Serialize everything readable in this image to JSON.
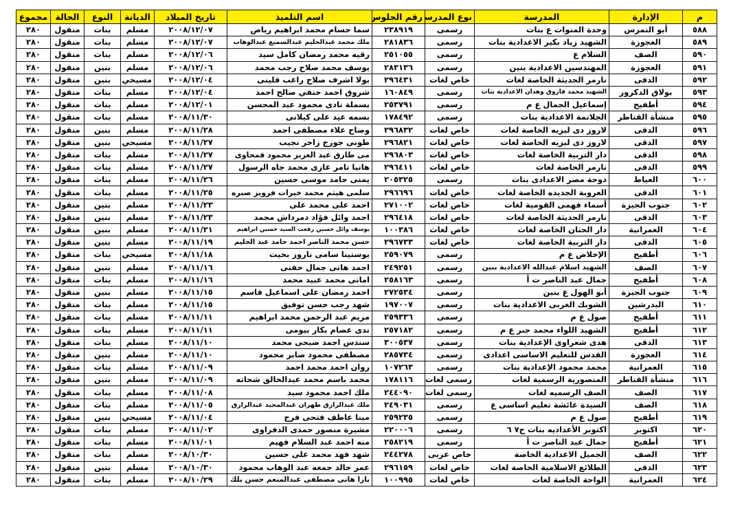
{
  "colors": {
    "header_bg": "#ffee00",
    "border": "#111111"
  },
  "headers": {
    "no": "م",
    "admin": "الإدارة",
    "school": "المدرسة",
    "school_type": "نوع المدرسة",
    "seat": "رقم الجلوس",
    "name": "اسم التلميذ",
    "dob": "تاريخ الميلاد",
    "religion": "الديانة",
    "gender": "النوع",
    "status": "الحالة",
    "total": "مجموع"
  },
  "rows": [
    {
      "no": "٥٨٨",
      "admin": "أبو النمرس",
      "school": "وحدة المنوات ع بنات",
      "school_type": "رسمى",
      "seat": "٢٣٨٩١٩",
      "name": "سما حسام محمد ابراهيم رياض",
      "dob": "٢٠٠٨/١٢/٠٧",
      "religion": "مسلم",
      "gender": "بنات",
      "status": "منقول",
      "total": "٢٨٠"
    },
    {
      "no": "٥٨٩",
      "admin": "العجوزة",
      "school": "الشهيد زياد بكير الاعدادية بنات",
      "school_type": "رسمى",
      "seat": "٢٨١٨٣٦",
      "name": "ملك محمد عبدالحليم عبدالسميع عبدالوهاب",
      "dob": "٢٠٠٨/١٢/٠٧",
      "religion": "مسلم",
      "gender": "بنات",
      "status": "منقول",
      "total": "٢٨٠"
    },
    {
      "no": "٥٩٠",
      "admin": "الصف",
      "school": "السلام ع",
      "school_type": "رسمى",
      "seat": "٢٥١٠٥٥",
      "name": "رقيه محمد رمضان كامل سيد",
      "dob": "٢٠٠٨/١٢/٠٦",
      "religion": "مسلم",
      "gender": "بنات",
      "status": "منقول",
      "total": "٢٨٠"
    },
    {
      "no": "٥٩١",
      "admin": "العجوزة",
      "school": "المهندسين الاعدادية بنين",
      "school_type": "رسمى",
      "seat": "٢٨٣١٣٦",
      "name": "يوسف محمد صلاح رجب محمد",
      "dob": "٢٠٠٨/١٢/٠٦",
      "religion": "مسلم",
      "gender": "بنين",
      "status": "منقول",
      "total": "٢٨٠"
    },
    {
      "no": "٥٩٢",
      "admin": "الدقى",
      "school": "نارمر الحديثة الخاصة لغات",
      "school_type": "خاص لغات",
      "seat": "٢٩٦٤٣١",
      "name": "بولا اشرف صلاح راغب قلينى",
      "dob": "٢٠٠٨/١٢/٠٤",
      "religion": "مسيحي",
      "gender": "بنين",
      "status": "منقول",
      "total": "٢٨٠"
    },
    {
      "no": "٥٩٣",
      "admin": "بولاق الدكرور",
      "school": "الشهيد محمد فاروق وهدان الاعدادية بنات",
      "school_type": "رسمى",
      "seat": "١٦٠٨٤٩",
      "name": "شروق احمد حنفي صالح احمد",
      "dob": "٢٠٠٨/١٢/٠٤",
      "religion": "مسلم",
      "gender": "بنات",
      "status": "منقول",
      "total": "٢٨٠"
    },
    {
      "no": "٥٩٤",
      "admin": "أطفيح",
      "school": "إسماعيل الجمال ع م",
      "school_type": "رسمى",
      "seat": "٢٥٣٧٩١",
      "name": "بسملة نادى محمود عبد المحسن",
      "dob": "٢٠٠٨/١٢/٠١",
      "religion": "مسلم",
      "gender": "بنات",
      "status": "منقول",
      "total": "٢٨٠"
    },
    {
      "no": "٥٩٥",
      "admin": "منشأة القناطر",
      "school": "الجلاتمة الاعدادية بنات",
      "school_type": "رسمى",
      "seat": "١٧٨٤٩٢",
      "name": "بسمه عيد على كيلانى",
      "dob": "٢٠٠٨/١١/٣٠",
      "religion": "مسلم",
      "gender": "بنات",
      "status": "منقول",
      "total": "٢٨٠"
    },
    {
      "no": "٥٩٦",
      "admin": "الدقى",
      "school": "لاروز دى ليزيه الخاصة لغات",
      "school_type": "خاص لغات",
      "seat": "٢٩٦٨٣٢",
      "name": "وضاح علاء مصطفى احمد",
      "dob": "٢٠٠٨/١١/٢٨",
      "religion": "مسلم",
      "gender": "بنين",
      "status": "منقول",
      "total": "٢٨٠"
    },
    {
      "no": "٥٩٧",
      "admin": "الدقى",
      "school": "لاروز دى ليزيه الخاصة لغات",
      "school_type": "خاص لغات",
      "seat": "٢٩٦٨٢١",
      "name": "طونى جورج زاخر نجيب",
      "dob": "٢٠٠٨/١١/٢٧",
      "religion": "مسيحي",
      "gender": "بنين",
      "status": "منقول",
      "total": "٢٨٠"
    },
    {
      "no": "٥٩٨",
      "admin": "الدقى",
      "school": "دار التربية الخاصة لغات",
      "school_type": "خاص لغات",
      "seat": "٢٩٦٨٠٣",
      "name": "مى طارق عبد العزيز محمود قمحاوى",
      "dob": "٢٠٠٨/١١/٢٧",
      "religion": "مسلم",
      "gender": "بنات",
      "status": "منقول",
      "total": "٢٨٠"
    },
    {
      "no": "٥٩٩",
      "admin": "الدقى",
      "school": "نارمر الخاصة لغات",
      "school_type": "خاص لغات",
      "seat": "٢٩٦٤١١",
      "name": "هانيا تامر غازى محمد جاه الرسول",
      "dob": "٢٠٠٨/١١/٢٧",
      "religion": "مسلم",
      "gender": "بنات",
      "status": "منقول",
      "total": "٢٨٠"
    },
    {
      "no": "٦٠٠",
      "admin": "العياط",
      "school": "دوحة مصر الاعدادى بنات",
      "school_type": "رسمى",
      "seat": "٢٠٥٣٢٥",
      "name": "يمنى حامد موسى حسين",
      "dob": "٢٠٠٨/١١/٢٦",
      "religion": "مسلم",
      "gender": "بنات",
      "status": "منقول",
      "total": "٢٨٠"
    },
    {
      "no": "٦٠١",
      "admin": "الدقى",
      "school": "العروبة الجديده الخاصة لغات",
      "school_type": "خاص لغات",
      "seat": "٢٩٦٦٩٦",
      "name": "سلمى هيثم محمد خيرات فرويز صبره",
      "dob": "٢٠٠٨/١١/٢٥",
      "religion": "مسلم",
      "gender": "بنات",
      "status": "منقول",
      "total": "٢٨٠"
    },
    {
      "no": "٦٠٢",
      "admin": "جنوب الجيزة",
      "school": "أسماء فهمى القومية لغات",
      "school_type": "خاص لغات",
      "seat": "٢٧١٠٠٢",
      "name": "احمد على محمد على",
      "dob": "٢٠٠٨/١١/٢٣",
      "religion": "مسلم",
      "gender": "بنين",
      "status": "منقول",
      "total": "٢٨٠"
    },
    {
      "no": "٦٠٣",
      "admin": "الدقى",
      "school": "نارمر الحديثة الخاصة لغات",
      "school_type": "خاص لغات",
      "seat": "٢٩٦٤١٨",
      "name": "احمد وائل فؤاد دمرداش محمد",
      "dob": "٢٠٠٨/١١/٢٣",
      "religion": "مسلم",
      "gender": "بنين",
      "status": "منقول",
      "total": "٢٨٠"
    },
    {
      "no": "٦٠٤",
      "admin": "العمرانية",
      "school": "دار الحنان الخاصة لغات",
      "school_type": "خاص لغات",
      "seat": "١٠٠٣٨٦",
      "name": "يوسف وائل حسين رفعت السيد حسين ابراهيم",
      "dob": "٢٠٠٨/١١/٢١",
      "religion": "مسلم",
      "gender": "بنين",
      "status": "منقول",
      "total": "٢٨٠"
    },
    {
      "no": "٦٠٥",
      "admin": "الدقى",
      "school": "دار التربية الخاصة لغات",
      "school_type": "خاص لغات",
      "seat": "٢٩٦٧٣٣",
      "name": "حسن محمد الناصر احمد حامد عبد الحليم",
      "dob": "٢٠٠٨/١١/١٩",
      "religion": "مسلم",
      "gender": "بنين",
      "status": "منقول",
      "total": "٢٨٠"
    },
    {
      "no": "٦٠٦",
      "admin": "أطفيح",
      "school": "الإخلاص ع م",
      "school_type": "رسمى",
      "seat": "٢٥٩٠٧٩",
      "name": "يوستينا سامى ناروز بخيت",
      "dob": "٢٠٠٨/١١/١٨",
      "religion": "مسيحي",
      "gender": "بنات",
      "status": "منقول",
      "total": "٢٨٠"
    },
    {
      "no": "٦٠٧",
      "admin": "الصف",
      "school": "الشهيد اسلام عبدالله الاعدادية بنين",
      "school_type": "رسمى",
      "seat": "٢٤٩٢٥١",
      "name": "احمد هانى جمال حفنى",
      "dob": "٢٠٠٨/١١/١٦",
      "religion": "مسلم",
      "gender": "بنين",
      "status": "منقول",
      "total": "٢٨٠"
    },
    {
      "no": "٦٠٨",
      "admin": "أطفيح",
      "school": "جمال عبد الناصر ت أ",
      "school_type": "رسمى",
      "seat": "٢٥٨١٦٣",
      "name": "امانى محمد عبيد محمد",
      "dob": "٢٠٠٨/١١/١٦",
      "religion": "مسلم",
      "gender": "بنات",
      "status": "منقول",
      "total": "٢٨٠"
    },
    {
      "no": "٦٠٩",
      "admin": "جنوب الجيزة",
      "school": "أبو الهول ع بنين",
      "school_type": "رسمى",
      "seat": "٢٧٢٥٣٤",
      "name": "احمد رمضان على اسماعيل قاسم",
      "dob": "٢٠٠٨/١١/١٥",
      "religion": "مسلم",
      "gender": "بنين",
      "status": "منقول",
      "total": "٢٨٠"
    },
    {
      "no": "٦١٠",
      "admin": "البدرشين",
      "school": "الشوبك الغربى الاعدادية بنات",
      "school_type": "رسمى",
      "seat": "١٩٧٠٠٧",
      "name": "شهد رجب حسن توفيق",
      "dob": "٢٠٠٨/١١/١٥",
      "religion": "مسلم",
      "gender": "بنات",
      "status": "منقول",
      "total": "٢٨٠"
    },
    {
      "no": "٦١١",
      "admin": "أطفيح",
      "school": "صول ع م",
      "school_type": "رسمى",
      "seat": "٢٥٩٣٣٦",
      "name": "مريم عبد الرحمن محمد ابراهيم",
      "dob": "٢٠٠٨/١١/١١",
      "religion": "مسلم",
      "gender": "بنات",
      "status": "منقول",
      "total": "٢٨٠"
    },
    {
      "no": "٦١٢",
      "admin": "أطفيح",
      "school": "الشهيد اللواء محمد جبر ع م",
      "school_type": "رسمى",
      "seat": "٢٥٧١٨٢",
      "name": "ندى عصام بكار بيومى",
      "dob": "٢٠٠٨/١١/١١",
      "religion": "مسلم",
      "gender": "بنات",
      "status": "منقول",
      "total": "٢٨٠"
    },
    {
      "no": "٦١٣",
      "admin": "الدقى",
      "school": "هدى شعراوى الإعدادية بنات",
      "school_type": "رسمى",
      "seat": "٣٠٠٥٣٧",
      "name": "سندس احمد صبحى محمد",
      "dob": "٢٠٠٨/١١/١٠",
      "religion": "مسلم",
      "gender": "بنات",
      "status": "منقول",
      "total": "٢٨٠"
    },
    {
      "no": "٦١٤",
      "admin": "العجوزة",
      "school": "القدس للتعليم الاساسى اعدادى",
      "school_type": "رسمى",
      "seat": "٢٨٥٧٣٤",
      "name": "مصطفى محمود صابر محمود",
      "dob": "٢٠٠٨/١١/١٠",
      "religion": "مسلم",
      "gender": "بنين",
      "status": "منقول",
      "total": "٢٨٠"
    },
    {
      "no": "٦١٥",
      "admin": "العمرانية",
      "school": "محمد محمود الإعدادية بنات",
      "school_type": "رسمى",
      "seat": "١٠٧٢٦٣",
      "name": "روان احمد محمد احمد",
      "dob": "٢٠٠٨/١١/٠٩",
      "religion": "مسلم",
      "gender": "بنات",
      "status": "منقول",
      "total": "٢٨٠"
    },
    {
      "no": "٦١٦",
      "admin": "منشأة القناطر",
      "school": "المنصورية الرسمية لغات",
      "school_type": "رسمى لغات",
      "seat": "١٧٨١١٦",
      "name": "محمد باسم محمد عبدالخالق شحاته",
      "dob": "٢٠٠٨/١١/٠٩",
      "religion": "مسلم",
      "gender": "بنين",
      "status": "منقول",
      "total": "٢٨٠"
    },
    {
      "no": "٦١٧",
      "admin": "الصف",
      "school": "الصف الرسميه لغات",
      "school_type": "رسمى لغات",
      "seat": "٢٤٤٠٩٠",
      "name": "ملك احمد محمود سيد",
      "dob": "٢٠٠٨/١١/٠٨",
      "religion": "مسلم",
      "gender": "بنات",
      "status": "منقول",
      "total": "٢٨٠"
    },
    {
      "no": "٦١٨",
      "admin": "الصف",
      "school": "السيدة عائشة تعليم اساسى ع",
      "school_type": "رسمى",
      "seat": "٢٤٩٠٣١",
      "name": "ملك عبدالرازق ظهران عبدالمجيد عبدالرازق",
      "dob": "٢٠٠٨/١١/٠٥",
      "religion": "مسلم",
      "gender": "بنات",
      "status": "منقول",
      "total": "٢٨٠"
    },
    {
      "no": "٦١٩",
      "admin": "أطفيح",
      "school": "صول ع م",
      "school_type": "رسمى",
      "seat": "٢٥٩٢٣٥",
      "name": "مينا عاطف فتحى فرج",
      "dob": "٢٠٠٨/١١/٠٤",
      "religion": "مسيحي",
      "gender": "بنين",
      "status": "منقول",
      "total": "٢٨٠"
    },
    {
      "no": "٦٢٠",
      "admin": "اكتوبر",
      "school": "اكتوبر الأعداديه بنات ح٧ ٦",
      "school_type": "رسمى",
      "seat": "٢٢٠٠٠٦",
      "name": "مشيرة منصور حمدى الدفراوى",
      "dob": "٢٠٠٨/١١/٠٢",
      "religion": "مسلم",
      "gender": "بنات",
      "status": "منقول",
      "total": "٢٨٠"
    },
    {
      "no": "٦٢١",
      "admin": "أطفيح",
      "school": "جمال عبد الناصر ت أ",
      "school_type": "رسمى",
      "seat": "٢٥٨٢١٩",
      "name": "منه احمد عبد السلام فهيم",
      "dob": "٢٠٠٨/١١/٠١",
      "religion": "مسلم",
      "gender": "بنات",
      "status": "منقول",
      "total": "٢٨٠"
    },
    {
      "no": "٦٢٢",
      "admin": "الصف",
      "school": "الجميل الاعدادية الخاصة",
      "school_type": "خاص عربى",
      "seat": "٢٤٤٢٧٨",
      "name": "شهد فهد محمد على حسين",
      "dob": "٢٠٠٨/١٠/٣٠",
      "religion": "مسلم",
      "gender": "بنات",
      "status": "منقول",
      "total": "٢٨٠"
    },
    {
      "no": "٦٢٣",
      "admin": "الدقى",
      "school": "الطلائع الاسلامية الخاصة لغات",
      "school_type": "خاص لغات",
      "seat": "٢٩٦١٥٩",
      "name": "عمر خالد جمعه عبد الوهاب محمود",
      "dob": "٢٠٠٨/١٠/٣٠",
      "religion": "مسلم",
      "gender": "بنين",
      "status": "منقول",
      "total": "٢٨٠"
    },
    {
      "no": "٦٢٤",
      "admin": "العمرانية",
      "school": "الواحة الخاصة لغات",
      "school_type": "خاص لغات",
      "seat": "١٠٠٩٩٥",
      "name": "يارا هانى مصطفى عبدالمنعم حسن بلك",
      "dob": "٢٠٠٨/١٠/٢٩",
      "religion": "مسلم",
      "gender": "بنات",
      "status": "منقول",
      "total": "٢٨٠"
    }
  ]
}
